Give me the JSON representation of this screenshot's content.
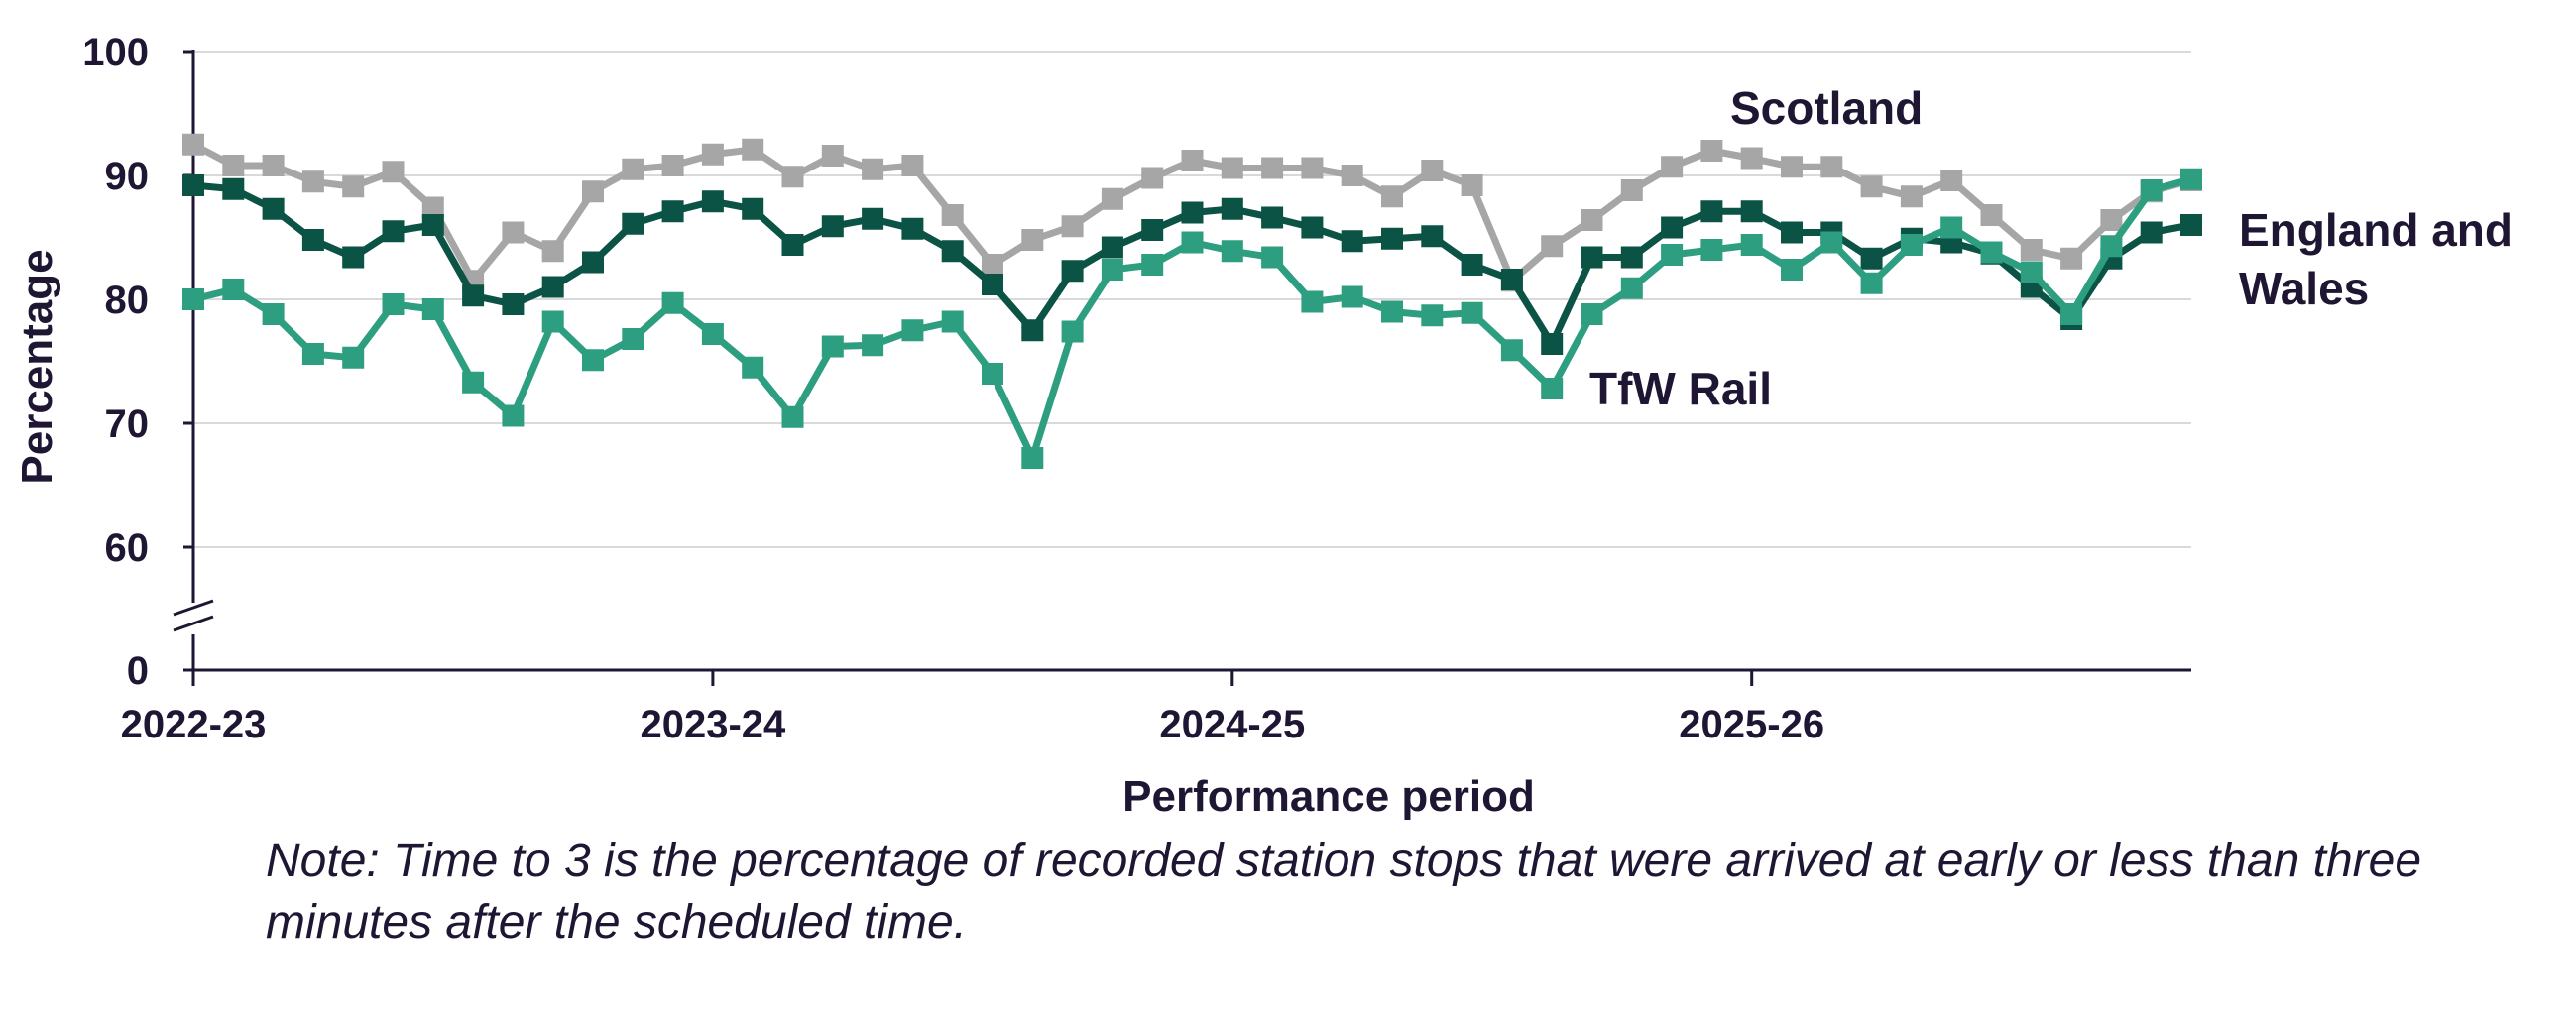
{
  "chart_data": {
    "type": "line",
    "title": "",
    "xlabel": "Performance period",
    "ylabel": "Percentage",
    "x_tick_labels": [
      "2022-23",
      "2023-24",
      "2024-25",
      "2025-26"
    ],
    "y_ticks": [
      0,
      60,
      70,
      80,
      90,
      100
    ],
    "ylim": [
      0,
      100
    ],
    "axis_break": true,
    "grid": true,
    "periods_per_year": 13,
    "series": [
      {
        "name": "Scotland",
        "color": "#a6a6a6",
        "values": [
          92.5,
          90.8,
          90.8,
          89.5,
          89.1,
          90.3,
          87.4,
          81.5,
          85.4,
          83.9,
          88.7,
          90.5,
          90.8,
          91.7,
          92.1,
          89.9,
          91.6,
          90.5,
          90.8,
          86.8,
          82.8,
          84.8,
          85.9,
          88.1,
          89.8,
          91.2,
          90.6,
          90.6,
          90.6,
          90.0,
          88.3,
          90.4,
          89.2,
          81.5,
          84.3,
          86.4,
          88.8,
          90.7,
          92.0,
          91.4,
          90.7,
          90.7,
          89.1,
          88.3,
          89.6,
          86.8,
          84.0,
          83.3,
          86.4,
          88.7,
          89.6
        ]
      },
      {
        "name": "England and Wales",
        "color": "#0b5345",
        "values": [
          89.2,
          88.9,
          87.3,
          84.8,
          83.4,
          85.5,
          86.0,
          80.3,
          79.6,
          81.0,
          83.0,
          86.1,
          87.1,
          87.9,
          87.3,
          84.4,
          85.9,
          86.5,
          85.7,
          83.9,
          81.2,
          77.5,
          82.3,
          84.2,
          85.6,
          87.0,
          87.3,
          86.6,
          85.8,
          84.7,
          84.9,
          85.1,
          82.8,
          81.6,
          76.4,
          83.4,
          83.4,
          85.8,
          87.1,
          87.1,
          85.4,
          85.4,
          83.3,
          84.9,
          84.6,
          83.7,
          81.0,
          78.4,
          83.3,
          85.4,
          86.0
        ]
      },
      {
        "name": "TfW Rail",
        "color": "#2e9e80",
        "values": [
          80.0,
          80.8,
          78.8,
          75.6,
          75.3,
          79.6,
          79.2,
          73.3,
          70.6,
          78.2,
          75.1,
          76.8,
          79.7,
          77.2,
          74.5,
          70.5,
          76.2,
          76.3,
          77.5,
          78.2,
          74.0,
          67.2,
          77.4,
          82.4,
          82.8,
          84.6,
          83.9,
          83.4,
          79.8,
          80.2,
          79.0,
          78.7,
          78.9,
          75.9,
          72.8,
          78.8,
          80.9,
          83.6,
          84.0,
          84.4,
          82.4,
          84.6,
          81.3,
          84.4,
          85.8,
          83.8,
          82.2,
          78.8,
          84.3,
          88.8,
          89.7
        ]
      }
    ]
  },
  "note": "Note: Time to 3 is the percentage of recorded station stops that were arrived at early or less than three minutes after the scheduled time."
}
